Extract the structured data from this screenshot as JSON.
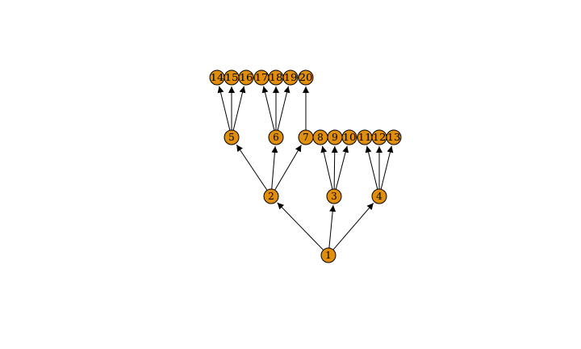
{
  "diagram": {
    "type": "directed-tree",
    "node_fill": "#E08E0B",
    "node_stroke": "#000000",
    "edge_color": "#000000",
    "nodes": [
      {
        "id": 1,
        "label": "1"
      },
      {
        "id": 2,
        "label": "2"
      },
      {
        "id": 3,
        "label": "3"
      },
      {
        "id": 4,
        "label": "4"
      },
      {
        "id": 5,
        "label": "5"
      },
      {
        "id": 6,
        "label": "6"
      },
      {
        "id": 7,
        "label": "7"
      },
      {
        "id": 8,
        "label": "8"
      },
      {
        "id": 9,
        "label": "9"
      },
      {
        "id": 10,
        "label": "10"
      },
      {
        "id": 11,
        "label": "11"
      },
      {
        "id": 12,
        "label": "12"
      },
      {
        "id": 13,
        "label": "13"
      },
      {
        "id": 14,
        "label": "14"
      },
      {
        "id": 15,
        "label": "15"
      },
      {
        "id": 16,
        "label": "16"
      },
      {
        "id": 17,
        "label": "17"
      },
      {
        "id": 18,
        "label": "18"
      },
      {
        "id": 19,
        "label": "19"
      },
      {
        "id": 20,
        "label": "20"
      }
    ],
    "edges": [
      [
        1,
        2
      ],
      [
        1,
        3
      ],
      [
        1,
        4
      ],
      [
        2,
        5
      ],
      [
        2,
        6
      ],
      [
        2,
        7
      ],
      [
        3,
        8
      ],
      [
        3,
        9
      ],
      [
        3,
        10
      ],
      [
        4,
        11
      ],
      [
        4,
        12
      ],
      [
        4,
        13
      ],
      [
        5,
        14
      ],
      [
        5,
        15
      ],
      [
        5,
        16
      ],
      [
        6,
        17
      ],
      [
        6,
        18
      ],
      [
        6,
        19
      ],
      [
        7,
        20
      ]
    ]
  }
}
